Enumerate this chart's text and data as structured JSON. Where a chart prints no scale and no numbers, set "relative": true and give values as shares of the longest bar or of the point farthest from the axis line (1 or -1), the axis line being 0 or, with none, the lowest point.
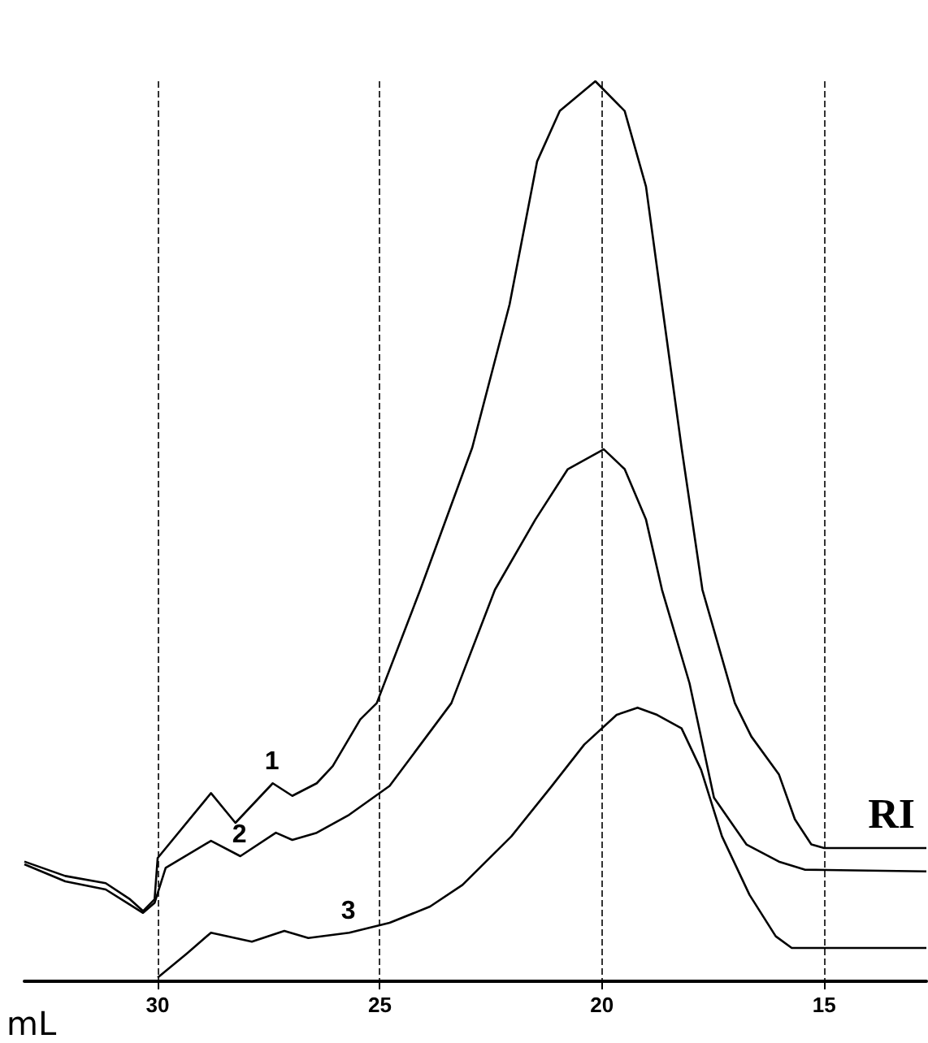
{
  "chart_data": {
    "type": "line",
    "relative": true,
    "xlabel": "mL",
    "annotations": [
      "RI"
    ],
    "xlim": [
      33.0,
      12.7
    ],
    "xticks": [
      30,
      25,
      20,
      15
    ],
    "grid": "x",
    "marker": "none",
    "line_style": "solid",
    "series": [
      {
        "name": "1",
        "color": "#000000",
        "x": [
          33.0,
          32.08,
          31.17,
          30.62,
          30.33,
          30.07,
          30.0,
          28.8,
          28.25,
          27.41,
          26.97,
          26.42,
          26.06,
          25.44,
          25.07,
          24.09,
          22.92,
          22.08,
          21.46,
          20.95,
          20.15,
          19.49,
          19.01,
          18.65,
          18.21,
          17.74,
          17.01,
          16.64,
          16.02,
          15.66,
          15.29,
          15.0,
          12.7
        ],
        "values": [
          0.133,
          0.117,
          0.109,
          0.091,
          0.078,
          0.091,
          0.137,
          0.209,
          0.176,
          0.22,
          0.206,
          0.22,
          0.239,
          0.291,
          0.309,
          0.435,
          0.593,
          0.752,
          0.911,
          0.967,
          1.0,
          0.967,
          0.883,
          0.752,
          0.593,
          0.435,
          0.309,
          0.272,
          0.23,
          0.18,
          0.152,
          0.148,
          0.148
        ]
      },
      {
        "name": "2",
        "color": "#000000",
        "x": [
          33.0,
          32.08,
          31.17,
          30.62,
          30.33,
          30.07,
          29.82,
          28.8,
          28.14,
          27.34,
          26.97,
          26.42,
          25.69,
          24.78,
          23.39,
          22.41,
          21.5,
          20.77,
          19.96,
          19.49,
          19.01,
          18.65,
          18.03,
          17.48,
          16.75,
          16.02,
          15.44,
          12.7
        ],
        "values": [
          0.13,
          0.111,
          0.102,
          0.085,
          0.076,
          0.087,
          0.126,
          0.156,
          0.139,
          0.165,
          0.157,
          0.165,
          0.185,
          0.217,
          0.309,
          0.435,
          0.513,
          0.569,
          0.591,
          0.569,
          0.513,
          0.435,
          0.331,
          0.204,
          0.152,
          0.133,
          0.124,
          0.122
        ]
      },
      {
        "name": "3",
        "color": "#000000",
        "x": [
          30.0,
          29.34,
          28.8,
          27.88,
          27.15,
          26.61,
          25.69,
          24.78,
          23.87,
          23.14,
          22.04,
          21.13,
          20.4,
          19.67,
          19.2,
          18.76,
          18.21,
          17.77,
          17.3,
          16.68,
          16.09,
          15.73,
          12.7
        ],
        "values": [
          0.004,
          0.031,
          0.054,
          0.044,
          0.056,
          0.048,
          0.054,
          0.065,
          0.083,
          0.107,
          0.161,
          0.217,
          0.263,
          0.296,
          0.304,
          0.296,
          0.281,
          0.235,
          0.161,
          0.096,
          0.05,
          0.037,
          0.037
        ]
      }
    ]
  }
}
